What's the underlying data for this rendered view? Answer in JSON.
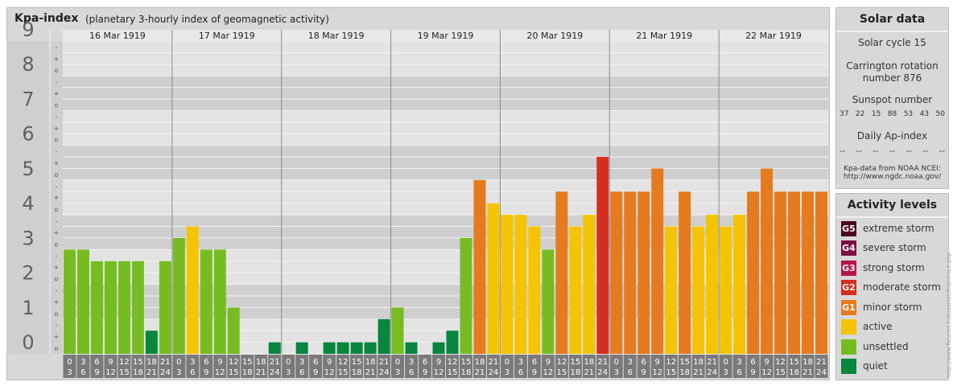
{
  "header": {
    "title": "Kpa-index",
    "subtitle": "(planetary 3-hourly index of geomagnetic activity)"
  },
  "solar": {
    "title": "Solar data",
    "cycle": "Solar cycle 15",
    "rotation_line1": "Carrington rotation",
    "rotation_line2": "number 876",
    "sunspot_label": "Sunspot number",
    "sunspot_values": [
      "37",
      "22",
      "15",
      "88",
      "53",
      "43",
      "50"
    ],
    "ap_label": "Daily Ap-index",
    "ap_values": [
      "--",
      "--",
      "--",
      "--",
      "--",
      "--",
      "--"
    ],
    "source_line1": "Kpa-data from NOAA NCEI:",
    "source_line2": "http://www.ngdc.noaa.gov/"
  },
  "activity": {
    "title": "Activity levels",
    "levels": [
      {
        "badge": "G5",
        "label": "extreme storm",
        "color": "#4a0a1e"
      },
      {
        "badge": "G4",
        "label": "severe storm",
        "color": "#7a1040"
      },
      {
        "badge": "G3",
        "label": "strong storm",
        "color": "#b5154b"
      },
      {
        "badge": "G2",
        "label": "moderate storm",
        "color": "#d62e1f"
      },
      {
        "badge": "G1",
        "label": "minor storm",
        "color": "#e57a1e"
      },
      {
        "badge": "",
        "label": "active",
        "color": "#f5c400"
      },
      {
        "badge": "",
        "label": "unsettled",
        "color": "#76bc21"
      },
      {
        "badge": "",
        "label": "quiet",
        "color": "#08853f"
      }
    ]
  },
  "watermark": "http://www.fleuriet.fr/ausonde/fr/archive.php",
  "chart_data": {
    "type": "bar",
    "title": "Kpa-index",
    "subtitle": "(planetary 3-hourly index of geomagnetic activity)",
    "ylim": [
      0,
      9
    ],
    "yticks": [
      "0",
      "1",
      "2",
      "3",
      "4",
      "5",
      "6",
      "7",
      "8",
      "9"
    ],
    "minor_tick_marks": [
      "o",
      "+",
      "-"
    ],
    "days": [
      "16 Mar 1919",
      "17 Mar 1919",
      "18 Mar 1919",
      "19 Mar 1919",
      "20 Mar 1919",
      "21 Mar 1919",
      "22 Mar 1919"
    ],
    "interval_starts": [
      "0",
      "3",
      "6",
      "9",
      "12",
      "15",
      "18",
      "21"
    ],
    "interval_ends": [
      "3",
      "6",
      "9",
      "12",
      "15",
      "18",
      "21",
      "24"
    ],
    "values": [
      3.0,
      3.0,
      2.667,
      2.667,
      2.667,
      2.667,
      0.667,
      2.667,
      3.333,
      3.667,
      3.0,
      3.0,
      1.333,
      0.0,
      0.0,
      0.333,
      0.0,
      0.333,
      0.0,
      0.333,
      0.333,
      0.333,
      0.333,
      1.0,
      1.333,
      0.333,
      0.0,
      0.333,
      0.667,
      3.333,
      5.0,
      4.333,
      4.0,
      4.0,
      3.667,
      3.0,
      4.667,
      3.667,
      4.0,
      5.667,
      4.667,
      4.667,
      4.667,
      5.333,
      3.667,
      4.667,
      3.667,
      4.0,
      3.667,
      4.0,
      4.667,
      5.333,
      4.667,
      4.667,
      4.667,
      4.667
    ],
    "color_thresholds": [
      {
        "max": 1.0,
        "level": "quiet"
      },
      {
        "max": 3.333,
        "level": "unsettled"
      },
      {
        "max": 4.333,
        "level": "active"
      },
      {
        "max": 5.333,
        "level": "minor storm"
      },
      {
        "max": 6.333,
        "level": "moderate storm"
      },
      {
        "max": 7.333,
        "level": "strong storm"
      },
      {
        "max": 8.333,
        "level": "severe storm"
      },
      {
        "max": 9.0,
        "level": "extreme storm"
      }
    ],
    "grid": true
  }
}
